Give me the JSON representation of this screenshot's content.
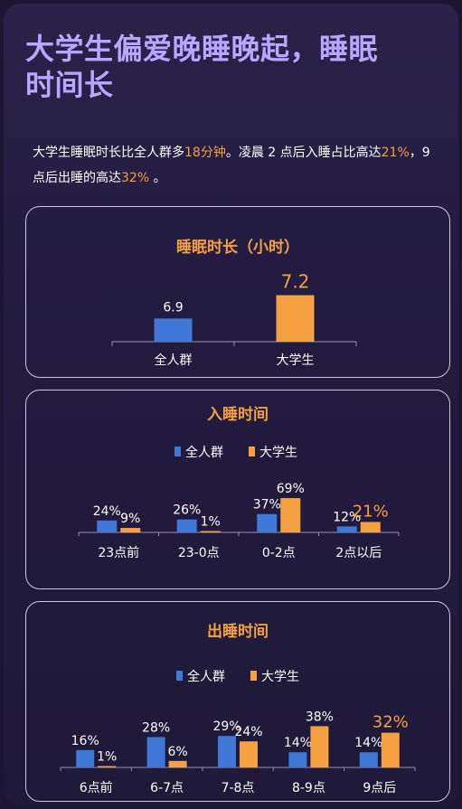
{
  "header": {
    "title_line1": "大学生偏爱晚睡晚起，睡眠",
    "title_line2": "时间长"
  },
  "intro": {
    "t1": "大学生睡眠时长比全人群多",
    "h1": "18分钟",
    "t2": "。凌晨 2 点后入睡占比高达",
    "h2": "21%",
    "t3": "，9点后出睡的高达",
    "h3": "32%",
    "t4": " 。"
  },
  "colors": {
    "all": "#3f78d6",
    "student": "#f5a041",
    "accent": "#f5a041",
    "title": "#b9a6ff"
  },
  "chart_data": [
    {
      "type": "bar",
      "title": "睡眠时长（小时）",
      "categories": [
        "全人群",
        "大学生"
      ],
      "values": [
        6.9,
        7.2
      ],
      "value_labels": [
        "6.9",
        "7.2"
      ],
      "highlight": [
        false,
        true
      ]
    },
    {
      "type": "bar",
      "title": "入睡时间",
      "legend": [
        "全人群",
        "大学生"
      ],
      "categories": [
        "23点前",
        "23-0点",
        "0-2点",
        "2点以后"
      ],
      "series": [
        {
          "name": "全人群",
          "values": [
            24,
            26,
            37,
            12
          ],
          "labels": [
            "24%",
            "26%",
            "37%",
            "12%"
          ]
        },
        {
          "name": "大学生",
          "values": [
            9,
            1,
            69,
            21
          ],
          "labels": [
            "9%",
            "1%",
            "69%",
            "21%"
          ]
        }
      ],
      "highlight_label": {
        "series": 1,
        "index": 3
      }
    },
    {
      "type": "bar",
      "title": "出睡时间",
      "legend": [
        "全人群",
        "大学生"
      ],
      "categories": [
        "6点前",
        "6-7点",
        "7-8点",
        "8-9点",
        "9点后"
      ],
      "series": [
        {
          "name": "全人群",
          "values": [
            16,
            28,
            29,
            14,
            14
          ],
          "labels": [
            "16%",
            "28%",
            "29%",
            "14%",
            "14%"
          ]
        },
        {
          "name": "大学生",
          "values": [
            1,
            6,
            24,
            38,
            32
          ],
          "labels": [
            "1%",
            "6%",
            "24%",
            "38%",
            "32%"
          ]
        }
      ],
      "highlight_label": {
        "series": 1,
        "index": 4
      }
    }
  ]
}
